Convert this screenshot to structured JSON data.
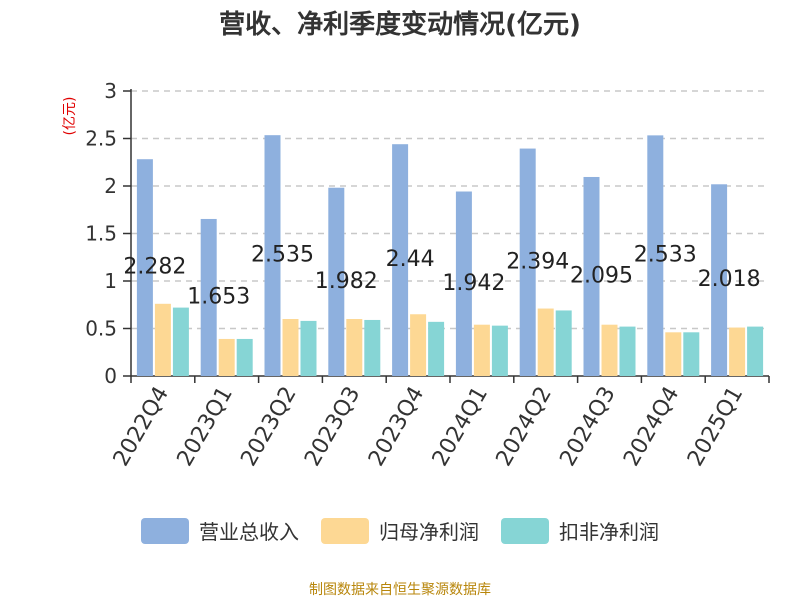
{
  "title": "营收、净利季度变动情况(亿元)",
  "source": "制图数据来自恒生聚源数据库",
  "chart_data": {
    "type": "bar",
    "title": "营收、净利季度变动情况(亿元)",
    "ylabel": "(亿元)",
    "xlabel": "",
    "ylim": [
      0,
      3
    ],
    "yticks": [
      "0",
      "0.5",
      "1",
      "1.5",
      "2",
      "2.5",
      "3"
    ],
    "grid": true,
    "legend_position": "bottom",
    "categories": [
      "2022Q4",
      "2023Q1",
      "2023Q2",
      "2023Q3",
      "2023Q4",
      "2024Q1",
      "2024Q2",
      "2024Q3",
      "2024Q4",
      "2025Q1"
    ],
    "series": [
      {
        "name": "营业总收入",
        "color": "#8eb0de",
        "values": [
          2.282,
          1.653,
          2.535,
          1.982,
          2.44,
          1.942,
          2.394,
          2.095,
          2.533,
          2.018
        ],
        "labels": [
          "2.282",
          "1.653",
          "2.535",
          "1.982",
          "2.44",
          "1.942",
          "2.394",
          "2.095",
          "2.533",
          "2.018"
        ]
      },
      {
        "name": "归母净利润",
        "color": "#fdd894",
        "values": [
          0.76,
          0.39,
          0.6,
          0.6,
          0.65,
          0.54,
          0.71,
          0.54,
          0.46,
          0.51
        ]
      },
      {
        "name": "扣非净利润",
        "color": "#86d5d5",
        "values": [
          0.72,
          0.39,
          0.58,
          0.59,
          0.57,
          0.53,
          0.69,
          0.52,
          0.46,
          0.52
        ]
      }
    ]
  }
}
